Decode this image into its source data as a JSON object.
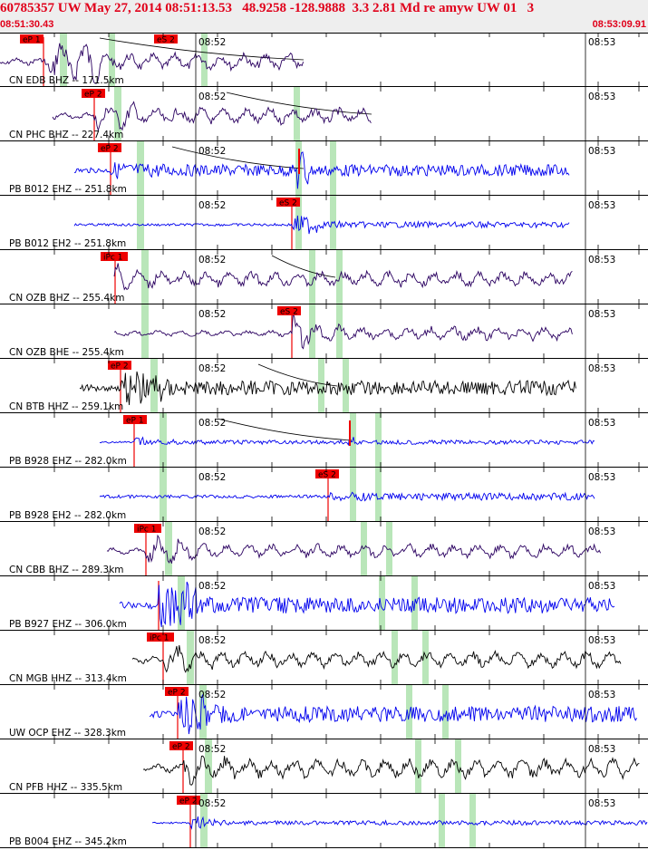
{
  "header": {
    "title": "60785357 UW May 27, 2014 08:51:13.53   48.9258 -128.9888  3.3 2.81 Md re amyw UW 01   3",
    "start_time": "08:51:30.43",
    "end_time": "08:53:09.91"
  },
  "minute_labels": {
    "first": "08:52",
    "second": "08:53"
  },
  "colors": {
    "header_text": "#e0001a",
    "pick_box": "#ee0000",
    "window": "#b9e6b9",
    "blue_trace": "#0000ee",
    "purple_trace": "#2a0060",
    "black_trace": "#000000",
    "tick": "#000000"
  },
  "traces": [
    {
      "label": "CN EDB BHZ -- 171.5km",
      "picks": [
        {
          "text": "eP 1",
          "kind": "P"
        },
        {
          "text": "eS 2",
          "kind": "S"
        }
      ],
      "color": "purple",
      "style": "purple"
    },
    {
      "label": "CN PHC BHZ -- 227.4km",
      "picks": [
        {
          "text": "eP 2",
          "kind": "P"
        }
      ],
      "color": "purple",
      "style": "purple"
    },
    {
      "label": "PB B012 EHZ -- 251.8km",
      "picks": [
        {
          "text": "eP 2",
          "kind": "P"
        }
      ],
      "color": "blue",
      "style": "blue"
    },
    {
      "label": "PB B012 EH2 -- 251.8km",
      "picks": [
        {
          "text": "eS 2",
          "kind": "S"
        }
      ],
      "color": "blue",
      "style": "blue"
    },
    {
      "label": "CN OZB BHZ -- 255.4km",
      "picks": [
        {
          "text": "iPc 1",
          "kind": "P"
        }
      ],
      "color": "purple",
      "style": "purple"
    },
    {
      "label": "CN OZB BHE -- 255.4km",
      "picks": [
        {
          "text": "eS 2",
          "kind": "S"
        }
      ],
      "color": "purple",
      "style": "purple"
    },
    {
      "label": "CN BTB HHZ -- 259.1km",
      "picks": [
        {
          "text": "eP 2",
          "kind": "P"
        }
      ],
      "color": "black",
      "style": "black"
    },
    {
      "label": "PB B928 EHZ -- 282.0km",
      "picks": [
        {
          "text": "eP 1",
          "kind": "P"
        }
      ],
      "color": "blue",
      "style": "blue"
    },
    {
      "label": "PB B928 EH2 -- 282.0km",
      "picks": [
        {
          "text": "eS 2",
          "kind": "S"
        }
      ],
      "color": "blue",
      "style": "blue"
    },
    {
      "label": "CN CBB BHZ -- 289.3km",
      "picks": [
        {
          "text": "iPc 1",
          "kind": "P"
        }
      ],
      "color": "purple",
      "style": "purple"
    },
    {
      "label": "PB B927 EHZ -- 306.0km",
      "picks": [],
      "color": "blue",
      "style": "blue"
    },
    {
      "label": "CN MGB HHZ -- 313.4km",
      "picks": [
        {
          "text": "iPc 1",
          "kind": "P"
        }
      ],
      "color": "black",
      "style": "black"
    },
    {
      "label": "UW OCP EHZ -- 328.3km",
      "picks": [
        {
          "text": "eP 2",
          "kind": "P"
        }
      ],
      "color": "blue",
      "style": "blue"
    },
    {
      "label": "CN PFB HHZ -- 335.5km",
      "picks": [
        {
          "text": "eP 2",
          "kind": "P"
        }
      ],
      "color": "black",
      "style": "black"
    },
    {
      "label": "PB B004 EHZ -- 345.2km",
      "picks": [
        {
          "text": "eP 2",
          "kind": "P"
        }
      ],
      "color": "blue",
      "style": "blue"
    }
  ]
}
